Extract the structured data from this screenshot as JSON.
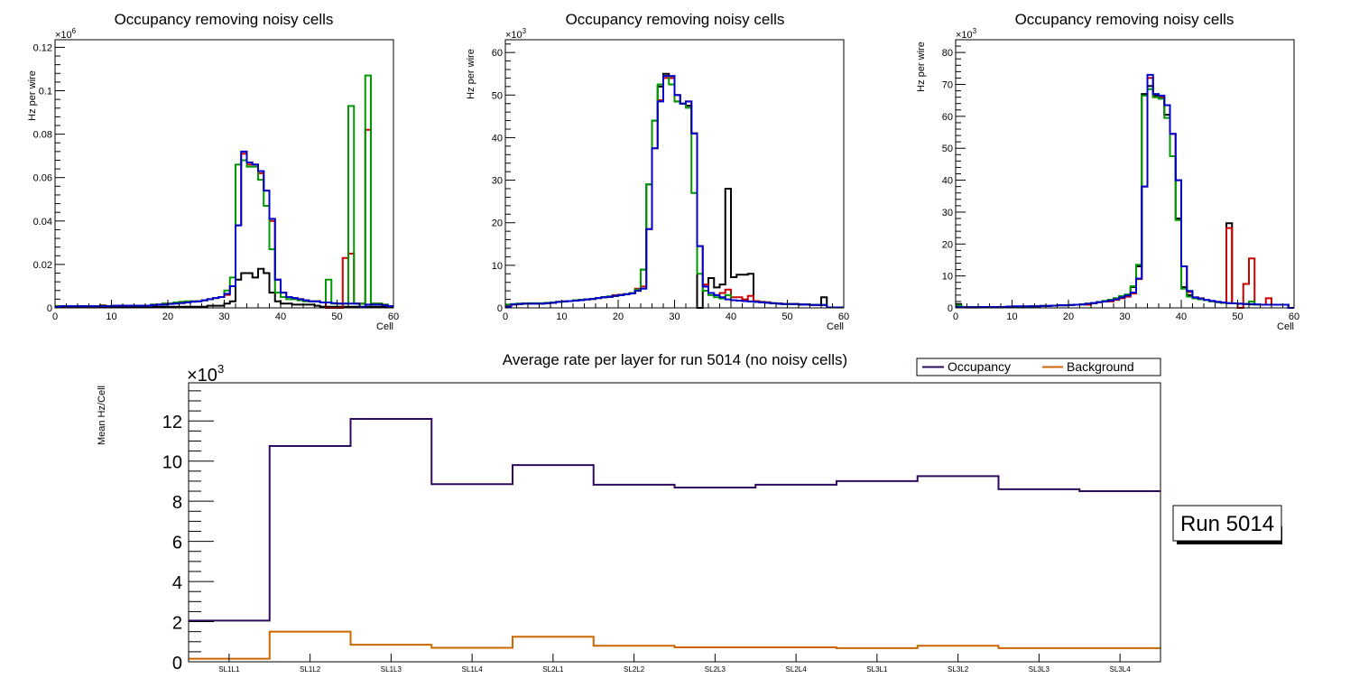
{
  "colors": {
    "black": "#000000",
    "red": "#cc0000",
    "green": "#009900",
    "blue": "#0000cc",
    "occupancy": "#2e0a5e",
    "background": "#cc6600"
  },
  "chart_data": [
    {
      "type": "histogram-step",
      "title": "Occupancy removing noisy cells",
      "xlabel": "Cell",
      "ylabel": "Hz per wire",
      "y_exponent": "×10^6",
      "xlim": [
        0,
        60
      ],
      "ylim": [
        0,
        0.1235
      ],
      "x_ticks": [
        "0",
        "10",
        "20",
        "30",
        "40",
        "50",
        "60"
      ],
      "y_ticks": [
        "0",
        "0.02",
        "0.04",
        "0.06",
        "0.08",
        "0.1",
        "0.12"
      ],
      "y_tick_values": [
        0,
        0.02,
        0.04,
        0.06,
        0.08,
        0.1,
        0.12
      ],
      "bin_edges_start": 0,
      "bin_width": 1,
      "series": [
        {
          "name": "black",
          "color_key": "black",
          "values": [
            0.0005,
            0.0005,
            0.0005,
            0.0005,
            0.0005,
            0.0005,
            0.0005,
            0.0005,
            0.0005,
            0.0005,
            0.0005,
            0.0005,
            0.0005,
            0.0005,
            0.0005,
            0.0005,
            0.0005,
            0.0005,
            0.0005,
            0.0005,
            0.0005,
            0.0005,
            0.0005,
            0.0005,
            0.0005,
            0.0005,
            0.0005,
            0.001,
            0.001,
            0.001,
            0.002,
            0.003,
            0.013,
            0.016,
            0.016,
            0.014,
            0.018,
            0.016,
            0.007,
            0.003,
            0.002,
            0.002,
            0.0015,
            0.0015,
            0.0015,
            0.0015,
            0.001,
            0.0005,
            0.0005,
            0.0005,
            0.0005,
            0.0005,
            0.0005,
            0.0005,
            0.0005,
            0.0005,
            0.0005,
            0.0005,
            0.0005,
            0.0005
          ]
        },
        {
          "name": "red",
          "color_key": "red",
          "values": [
            0.0008,
            0.0008,
            0.0008,
            0.0008,
            0.0008,
            0.0008,
            0.0008,
            0.0008,
            0.0012,
            0.0008,
            0.001,
            0.001,
            0.001,
            0.001,
            0.001,
            0.001,
            0.001,
            0.0015,
            0.0015,
            0.002,
            0.002,
            0.0022,
            0.0025,
            0.0028,
            0.003,
            0.003,
            0.0035,
            0.004,
            0.0045,
            0.005,
            0.006,
            0.01,
            0.038,
            0.071,
            0.066,
            0.066,
            0.062,
            0.054,
            0.04,
            0.013,
            0.007,
            0.005,
            0.0045,
            0.004,
            0.0035,
            0.003,
            0.003,
            0.0025,
            0.0,
            0.0,
            0.0,
            0.023,
            0.025,
            0.002,
            0.002,
            0.082,
            0.002,
            0.002,
            0.0015,
            0.0008
          ]
        },
        {
          "name": "green",
          "color_key": "green",
          "values": [
            0.0008,
            0.0008,
            0.0008,
            0.0008,
            0.0008,
            0.0008,
            0.0008,
            0.0008,
            0.001,
            0.0008,
            0.001,
            0.001,
            0.001,
            0.001,
            0.001,
            0.001,
            0.001,
            0.0015,
            0.0015,
            0.002,
            0.002,
            0.0025,
            0.0028,
            0.003,
            0.003,
            0.003,
            0.0035,
            0.004,
            0.0045,
            0.005,
            0.008,
            0.014,
            0.066,
            0.068,
            0.065,
            0.065,
            0.059,
            0.047,
            0.027,
            0.007,
            0.005,
            0.004,
            0.004,
            0.0035,
            0.003,
            0.003,
            0.003,
            0.0025,
            0.013,
            0.002,
            0.002,
            0.002,
            0.093,
            0.002,
            0.002,
            0.107,
            0.002,
            0.002,
            0.0015,
            0.0008
          ]
        },
        {
          "name": "blue",
          "color_key": "blue",
          "values": [
            0.0005,
            0.0008,
            0.0008,
            0.0008,
            0.0008,
            0.0008,
            0.0008,
            0.0008,
            0.0008,
            0.0008,
            0.001,
            0.001,
            0.001,
            0.001,
            0.001,
            0.001,
            0.001,
            0.0013,
            0.0015,
            0.0015,
            0.0018,
            0.002,
            0.0022,
            0.0025,
            0.0028,
            0.003,
            0.0035,
            0.004,
            0.0045,
            0.005,
            0.0065,
            0.01,
            0.038,
            0.072,
            0.067,
            0.066,
            0.063,
            0.054,
            0.041,
            0.013,
            0.007,
            0.005,
            0.0045,
            0.004,
            0.0035,
            0.003,
            0.003,
            0.0025,
            0.0025,
            0.0022,
            0.002,
            0.002,
            0.002,
            0.002,
            0.0003,
            0.0015,
            0.0015,
            0.0015,
            0.0012,
            0.0008
          ]
        }
      ]
    },
    {
      "type": "histogram-step",
      "title": "Occupancy removing noisy cells",
      "xlabel": "Cell",
      "ylabel": "Hz per wire",
      "y_exponent": "×10^3",
      "xlim": [
        0,
        60
      ],
      "ylim": [
        0,
        63
      ],
      "x_ticks": [
        "0",
        "10",
        "20",
        "30",
        "40",
        "50",
        "60"
      ],
      "y_ticks": [
        "0",
        "10",
        "20",
        "30",
        "40",
        "50",
        "60"
      ],
      "y_tick_values": [
        0,
        10,
        20,
        30,
        40,
        50,
        60
      ],
      "bin_edges_start": 0,
      "bin_width": 1,
      "series": [
        {
          "name": "black",
          "color_key": "black",
          "values": [
            0.5,
            0.8,
            0.9,
            1.0,
            1.0,
            1.0,
            1.0,
            1.1,
            1.2,
            1.4,
            1.5,
            1.6,
            1.7,
            1.8,
            2.0,
            2.1,
            2.3,
            2.5,
            2.6,
            2.8,
            3.0,
            3.2,
            3.4,
            4.2,
            9.0,
            29.0,
            44.0,
            52.0,
            55.0,
            54.0,
            48.5,
            48.0,
            47.5,
            41.0,
            0.0,
            5.0,
            7.0,
            4.8,
            5.5,
            28.0,
            7.2,
            7.8,
            7.8,
            8.0,
            1.6,
            1.4,
            1.3,
            1.1,
            1.0,
            0.9,
            0.9,
            0.9,
            0.8,
            0.8,
            0.7,
            0.7,
            2.5,
            0.1,
            0.1,
            0.1
          ]
        },
        {
          "name": "red",
          "color_key": "red",
          "values": [
            0.5,
            0.8,
            0.9,
            1.0,
            1.0,
            1.0,
            1.0,
            1.1,
            1.2,
            1.4,
            1.5,
            1.6,
            1.7,
            1.8,
            2.0,
            2.1,
            2.3,
            2.5,
            2.6,
            3.0,
            3.1,
            3.2,
            3.4,
            4.5,
            5.0,
            18.5,
            37.5,
            48.8,
            54.0,
            54.0,
            50.0,
            48.0,
            48.5,
            41.0,
            14.5,
            5.5,
            3.5,
            3.0,
            3.5,
            4.3,
            2.5,
            2.5,
            2.0,
            2.8,
            1.6,
            1.4,
            1.3,
            1.1,
            1.0,
            0.9,
            0.9,
            0.9,
            0.8,
            0.8,
            0.7,
            0.7,
            0.7,
            0.1,
            0.1,
            0.1
          ]
        },
        {
          "name": "green",
          "color_key": "green",
          "values": [
            0.8,
            0.9,
            1.0,
            1.0,
            1.1,
            1.1,
            1.1,
            1.2,
            1.3,
            1.4,
            1.5,
            1.6,
            1.8,
            1.9,
            2.0,
            2.1,
            2.3,
            2.5,
            2.7,
            2.8,
            3.0,
            3.2,
            3.5,
            4.3,
            9.0,
            29.0,
            44.0,
            52.5,
            54.5,
            52.5,
            48.5,
            48.0,
            47.0,
            27.0,
            8.0,
            4.0,
            3.0,
            2.5,
            2.2,
            3.0,
            1.8,
            1.7,
            1.6,
            1.5,
            1.4,
            1.3,
            1.2,
            1.1,
            1.0,
            0.9,
            0.9,
            0.9,
            0.8,
            0.8,
            0.7,
            0.7,
            0.7,
            0.1,
            0.1,
            0.1
          ]
        },
        {
          "name": "blue",
          "color_key": "blue",
          "values": [
            0.3,
            0.8,
            0.9,
            1.0,
            1.0,
            1.0,
            1.0,
            1.1,
            1.2,
            1.4,
            1.5,
            1.6,
            1.7,
            1.8,
            2.0,
            2.1,
            2.3,
            2.5,
            2.6,
            2.8,
            3.0,
            3.2,
            3.4,
            4.0,
            4.5,
            18.5,
            37.5,
            48.5,
            54.5,
            54.5,
            50.0,
            48.0,
            48.5,
            41.0,
            14.5,
            5.0,
            3.5,
            3.0,
            2.5,
            2.0,
            1.8,
            1.7,
            1.6,
            1.5,
            1.4,
            1.3,
            1.2,
            1.1,
            1.0,
            0.9,
            0.9,
            0.9,
            0.8,
            0.8,
            0.7,
            0.7,
            0.7,
            0.1,
            0.1,
            0.1
          ]
        }
      ]
    },
    {
      "type": "histogram-step",
      "title": "Occupancy removing noisy cells",
      "xlabel": "Cell",
      "ylabel": "Hz per wire",
      "y_exponent": "×10^3",
      "xlim": [
        0,
        60
      ],
      "ylim": [
        0,
        84
      ],
      "x_ticks": [
        "0",
        "10",
        "20",
        "30",
        "40",
        "50",
        "60"
      ],
      "y_ticks": [
        "0",
        "10",
        "20",
        "30",
        "40",
        "50",
        "60",
        "70",
        "80"
      ],
      "y_tick_values": [
        0,
        10,
        20,
        30,
        40,
        50,
        60,
        70,
        80
      ],
      "bin_edges_start": 0,
      "bin_width": 1,
      "series": [
        {
          "name": "black",
          "color_key": "black",
          "values": [
            1.2,
            0.2,
            0.2,
            0.2,
            0.3,
            0.3,
            0.3,
            0.3,
            0.3,
            0.4,
            0.4,
            0.4,
            0.4,
            0.5,
            0.5,
            0.6,
            0.6,
            0.7,
            0.8,
            0.8,
            0.9,
            1.0,
            1.1,
            1.3,
            1.5,
            1.8,
            2.0,
            2.5,
            3.0,
            3.5,
            4.0,
            6.5,
            13.0,
            67.0,
            69.5,
            66.5,
            66.0,
            60.5,
            47.5,
            28.0,
            6.5,
            4.0,
            3.0,
            2.7,
            2.4,
            2.1,
            1.8,
            1.6,
            26.5,
            1.4,
            1.3,
            1.2,
            1.1,
            1.0,
            1.0,
            1.0,
            1.0,
            1.0,
            1.0,
            0.0
          ]
        },
        {
          "name": "red",
          "color_key": "red",
          "values": [
            0.2,
            0.2,
            0.1,
            0.1,
            0.3,
            0.3,
            0.3,
            0.3,
            0.3,
            0.2,
            0.4,
            0.4,
            0.4,
            0.5,
            0.5,
            0.6,
            0.6,
            0.7,
            0.8,
            0.8,
            0.9,
            1.0,
            1.1,
            1.0,
            1.5,
            1.8,
            2.0,
            2.0,
            2.5,
            3.0,
            3.5,
            4.5,
            9.0,
            38.0,
            72.0,
            66.0,
            66.0,
            63.5,
            54.5,
            40.0,
            13.0,
            5.0,
            3.3,
            3.0,
            2.4,
            2.1,
            1.8,
            1.6,
            25.0,
            1.4,
            0.0,
            7.5,
            15.5,
            1.0,
            1.0,
            3.0,
            1.0,
            1.0,
            1.0,
            0.0
          ]
        },
        {
          "name": "green",
          "color_key": "green",
          "values": [
            0.8,
            0.2,
            0.2,
            0.2,
            0.3,
            0.3,
            0.3,
            0.3,
            0.3,
            0.4,
            0.4,
            0.4,
            0.4,
            0.5,
            0.5,
            0.6,
            0.6,
            0.7,
            0.8,
            0.8,
            0.9,
            1.0,
            1.1,
            1.3,
            1.5,
            1.8,
            2.2,
            2.5,
            3.0,
            3.7,
            4.2,
            6.8,
            13.5,
            66.5,
            68.5,
            66.0,
            65.5,
            59.5,
            47.5,
            27.5,
            6.0,
            3.5,
            3.0,
            2.7,
            2.4,
            2.1,
            1.8,
            1.6,
            1.5,
            1.4,
            1.3,
            1.2,
            2.0,
            1.0,
            1.0,
            1.0,
            1.0,
            1.0,
            1.0,
            0.0
          ]
        },
        {
          "name": "blue",
          "color_key": "blue",
          "values": [
            0.3,
            0.2,
            0.2,
            0.2,
            0.3,
            0.3,
            0.3,
            0.3,
            0.3,
            0.4,
            0.5,
            0.5,
            0.5,
            0.5,
            0.5,
            0.6,
            0.6,
            0.7,
            0.8,
            0.8,
            0.9,
            1.0,
            1.1,
            1.3,
            1.5,
            1.8,
            2.0,
            2.3,
            2.7,
            3.3,
            3.9,
            4.8,
            9.2,
            38.0,
            73.0,
            67.0,
            66.5,
            63.5,
            54.5,
            40.0,
            13.0,
            5.3,
            3.3,
            2.9,
            2.5,
            2.2,
            1.9,
            1.7,
            1.5,
            1.4,
            1.3,
            1.2,
            1.2,
            1.1,
            1.0,
            1.0,
            1.0,
            1.0,
            1.0,
            0.0
          ]
        }
      ]
    },
    {
      "type": "histogram-step",
      "title": "Average rate per layer for run 5014 (no noisy cells)",
      "xlabel": "",
      "ylabel": "Mean Hz/Cell",
      "y_exponent": "×10^3",
      "ylim": [
        0,
        13.9
      ],
      "y_ticks": [
        "0",
        "2",
        "4",
        "6",
        "8",
        "10",
        "12"
      ],
      "y_tick_values": [
        0,
        2,
        4,
        6,
        8,
        10,
        12
      ],
      "categories": [
        "SL1L1",
        "SL1L2",
        "SL1L3",
        "SL1L4",
        "SL2L1",
        "SL2L2",
        "SL2L3",
        "SL2L4",
        "SL3L1",
        "SL3L2",
        "SL3L3",
        "SL3L4"
      ],
      "legend": {
        "position": "top-right",
        "entries": [
          "Occupancy",
          "Background"
        ]
      },
      "series": [
        {
          "name": "Occupancy",
          "color_key": "occupancy",
          "values": [
            2.05,
            10.75,
            12.1,
            8.85,
            9.8,
            8.82,
            8.68,
            8.82,
            9.0,
            9.25,
            8.6,
            8.5
          ]
        },
        {
          "name": "Background",
          "color_key": "background",
          "values": [
            0.15,
            1.5,
            0.85,
            0.7,
            1.25,
            0.8,
            0.72,
            0.72,
            0.68,
            0.8,
            0.68,
            0.68
          ]
        }
      ],
      "annotation": "Run 5014"
    }
  ]
}
